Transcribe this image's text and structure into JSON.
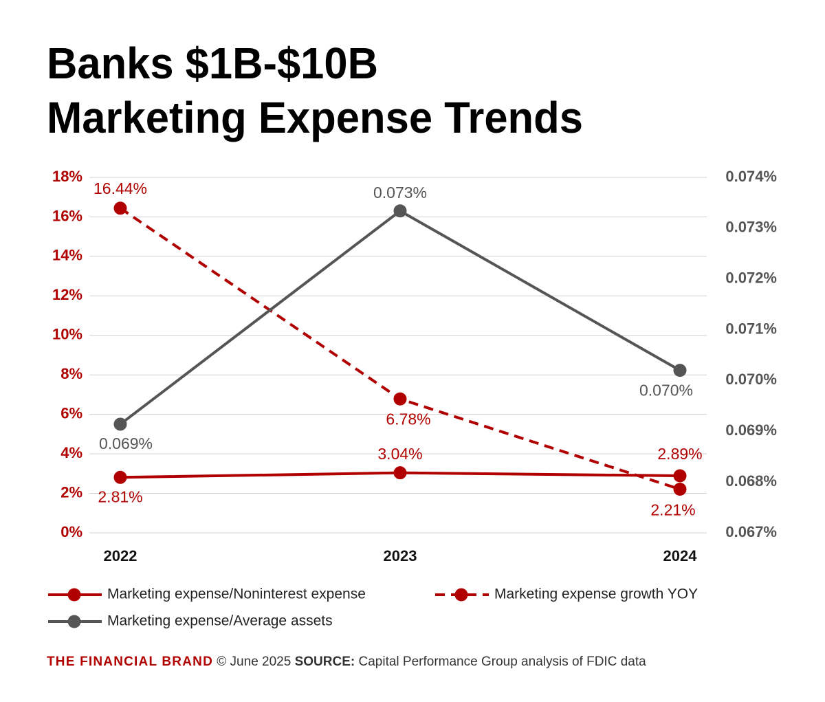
{
  "chart_data": {
    "type": "line",
    "title": [
      "Banks $1B-$10B",
      "Marketing Expense Trends"
    ],
    "categories": [
      "2022",
      "2023",
      "2024"
    ],
    "series": [
      {
        "name": "Marketing expense/Noninterest expense",
        "color": "#b00000",
        "dash": false,
        "values": [
          2.81,
          3.04,
          2.89
        ],
        "value_labels": [
          "2.81%",
          "3.04%",
          "2.89%"
        ]
      },
      {
        "name": "Marketing expense growth YOY",
        "color": "#b00000",
        "dash": true,
        "values": [
          16.44,
          6.78,
          2.21
        ],
        "value_labels": [
          "16.44%",
          "6.78%",
          "2.21%"
        ]
      },
      {
        "name": "Marketing expense/Average assets",
        "color": "#555555",
        "dash": false,
        "axis": "y2",
        "values": [
          0.06914,
          0.07334,
          0.0702
        ],
        "value_labels": [
          "0.069%",
          "0.073%",
          "0.070%"
        ]
      }
    ],
    "ylim": [
      0,
      18
    ],
    "yticks": [
      {
        "value": 0,
        "label": "0%"
      },
      {
        "value": 2,
        "label": "2%"
      },
      {
        "value": 4,
        "label": "4%"
      },
      {
        "value": 6,
        "label": "6%"
      },
      {
        "value": 8,
        "label": "8%"
      },
      {
        "value": 10,
        "label": "10%"
      },
      {
        "value": 12,
        "label": "12%"
      },
      {
        "value": 14,
        "label": "14%"
      },
      {
        "value": 16,
        "label": "16%"
      },
      {
        "value": 18,
        "label": "18%"
      }
    ],
    "y2lim": [
      0.067,
      0.074
    ],
    "y2ticks": [
      {
        "value": 0.067,
        "label": "0.067%"
      },
      {
        "value": 0.068,
        "label": "0.068%"
      },
      {
        "value": 0.069,
        "label": "0.069%"
      },
      {
        "value": 0.07,
        "label": "0.070%"
      },
      {
        "value": 0.071,
        "label": "0.071%"
      },
      {
        "value": 0.072,
        "label": "0.072%"
      },
      {
        "value": 0.073,
        "label": "0.073%"
      },
      {
        "value": 0.074,
        "label": "0.074%"
      }
    ],
    "grid": true,
    "footer": {
      "brand": "THE FINANCIAL BRAND",
      "note": "© June 2025",
      "source_label": "SOURCE:",
      "source": "Capital Performance Group analysis of FDIC data"
    }
  }
}
